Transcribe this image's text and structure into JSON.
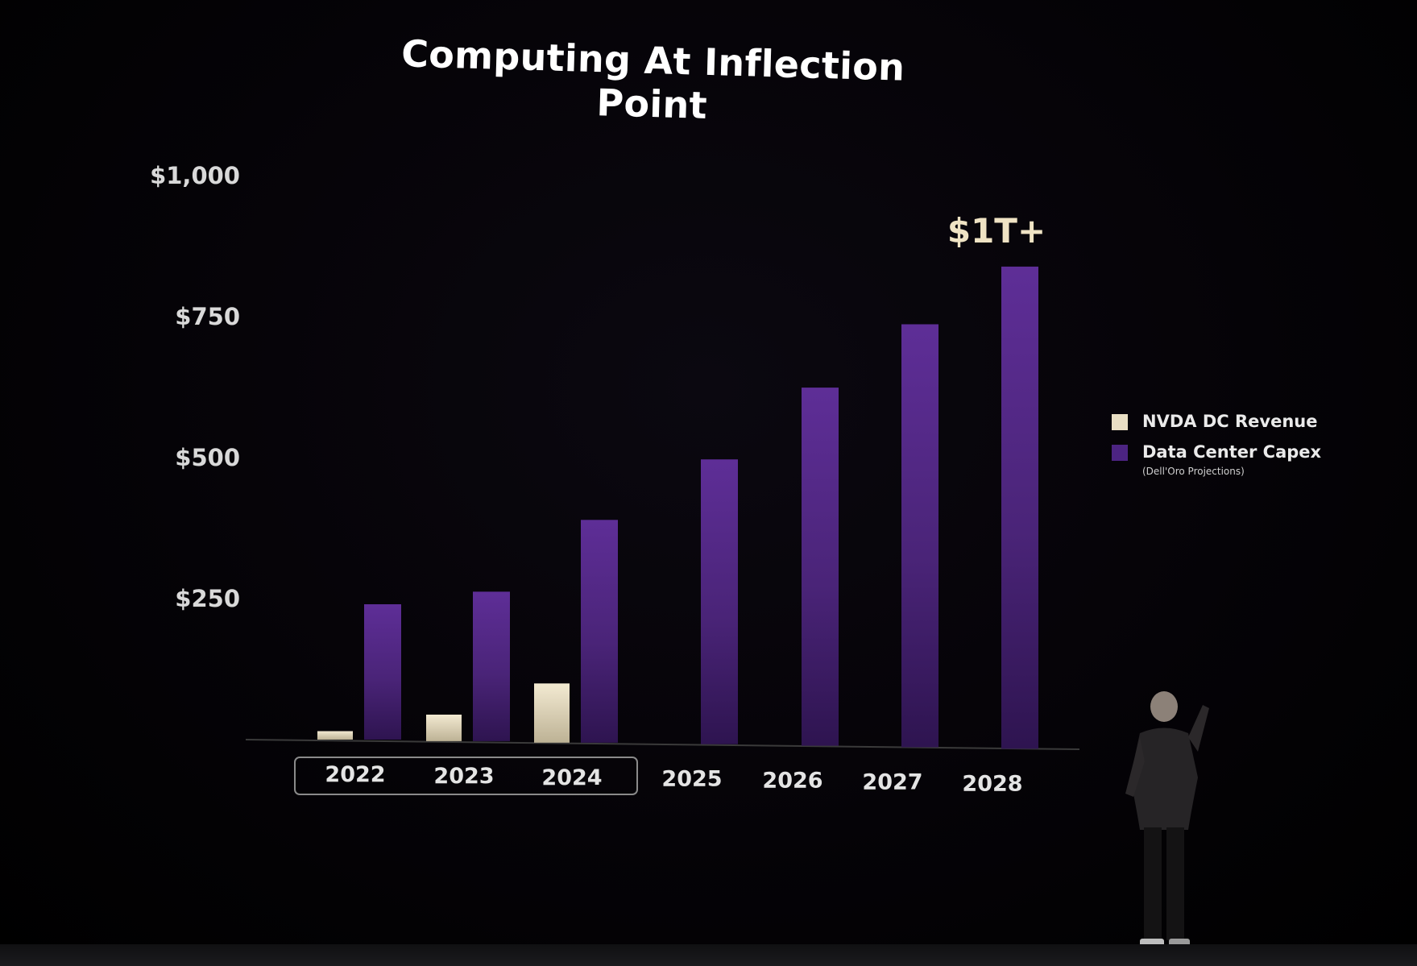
{
  "chart_data": {
    "type": "bar",
    "title": "Computing At Inflection Point",
    "xlabel": "",
    "ylabel": "",
    "categories": [
      "2022",
      "2023",
      "2024",
      "2025",
      "2026",
      "2027",
      "2028"
    ],
    "series": [
      {
        "name": "NVDA DC Revenue",
        "color": "#e9dfc4",
        "values": [
          15,
          47,
          105,
          null,
          null,
          null,
          null
        ]
      },
      {
        "name": "Data Center Capex",
        "note": "(Dell'Oro Projections)",
        "color": "#5b2d91",
        "values": [
          240,
          265,
          395,
          505,
          635,
          750,
          855
        ]
      }
    ],
    "yticks": [
      "$250",
      "$500",
      "$750",
      "$1,000"
    ],
    "ytick_values": [
      250,
      500,
      750,
      1000
    ],
    "ylim": [
      0,
      1000
    ],
    "highlighted_categories": [
      "2022",
      "2023",
      "2024"
    ],
    "annotation": {
      "text": "$1T+",
      "category": "2028"
    },
    "legend_position": "right"
  }
}
